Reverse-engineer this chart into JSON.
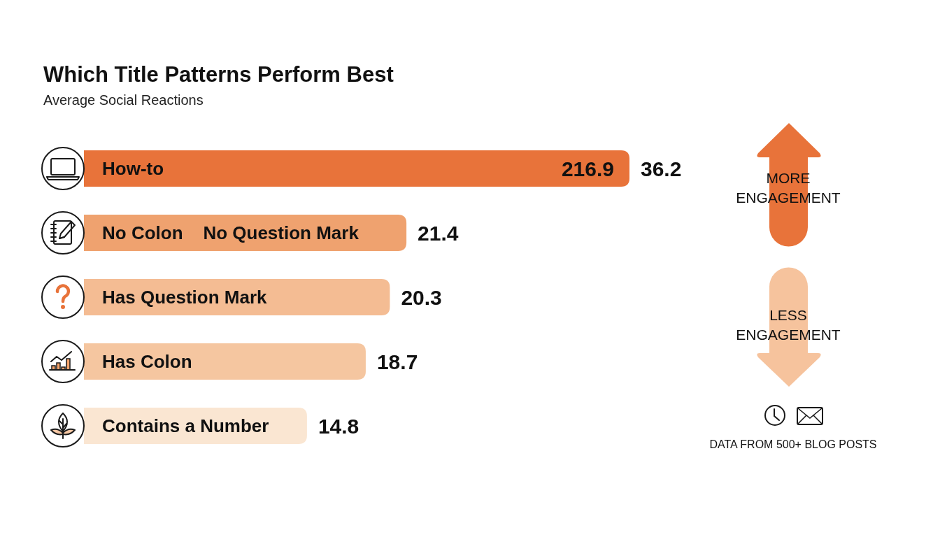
{
  "chart_data": {
    "type": "bar",
    "orientation": "horizontal",
    "title": "Which Title Patterns Perform Best",
    "subtitle": "Average Social Reactions",
    "categories": [
      "How-to",
      "No Colon    No Question Mark",
      "Has Question Mark",
      "Has Colon",
      "Contains a Number"
    ],
    "values": [
      36.2,
      21.4,
      20.3,
      18.7,
      14.8
    ],
    "colors": [
      "#e8733a",
      "#efa26f",
      "#f4bc93",
      "#f5c6a0",
      "#fae6d2"
    ],
    "data_labels": true,
    "annotations": [
      "216.9",
      "MORE ENGAGEMENT",
      "LESS ENGAGEMENT",
      "DATA FROM 500+ BLOG POSTS"
    ]
  }
}
